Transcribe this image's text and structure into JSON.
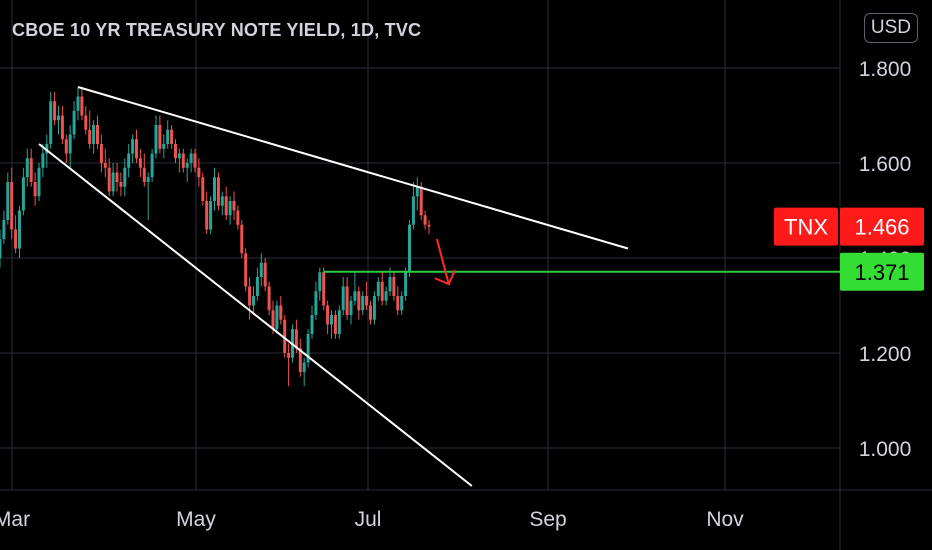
{
  "header": {
    "title": "CBOE 10 YR TREASURY NOTE YIELD, 1D, TVC"
  },
  "currency_button": "USD",
  "price_tags": {
    "symbol": "TNX",
    "last_price": "1.466",
    "support_price": "1.371"
  },
  "colors": {
    "up": "#26a69a",
    "down": "#ef5350",
    "background": "#000000",
    "grid": "#2a2e39",
    "trendline": "#ffffff",
    "support": "#2ecc40",
    "annotation_arrow": "#ff2b2b",
    "tag_red": "#ff1a1a",
    "tag_green": "#33dd33"
  },
  "chart_data": {
    "type": "candlestick",
    "title": "CBOE 10 YR TREASURY NOTE YIELD, 1D, TVC",
    "interval": "1D",
    "ylim": [
      0.92,
      1.87
    ],
    "y_ticks": [
      1.0,
      1.2,
      1.4,
      1.6,
      1.8
    ],
    "y_tick_labels": [
      "1.000",
      "1.200",
      "1.400",
      "1.600",
      "1.800"
    ],
    "x_ticks": [
      "Mar",
      "May",
      "Jul",
      "Sep",
      "Nov"
    ],
    "candles": [
      [
        1.4,
        1.46,
        1.38,
        1.44
      ],
      [
        1.44,
        1.5,
        1.43,
        1.48
      ],
      [
        1.48,
        1.58,
        1.47,
        1.56
      ],
      [
        1.56,
        1.59,
        1.44,
        1.46
      ],
      [
        1.46,
        1.49,
        1.41,
        1.42
      ],
      [
        1.42,
        1.51,
        1.4,
        1.5
      ],
      [
        1.5,
        1.59,
        1.49,
        1.57
      ],
      [
        1.57,
        1.63,
        1.55,
        1.61
      ],
      [
        1.61,
        1.63,
        1.55,
        1.56
      ],
      [
        1.56,
        1.58,
        1.51,
        1.53
      ],
      [
        1.53,
        1.6,
        1.52,
        1.59
      ],
      [
        1.59,
        1.64,
        1.57,
        1.62
      ],
      [
        1.62,
        1.66,
        1.59,
        1.64
      ],
      [
        1.64,
        1.75,
        1.63,
        1.73
      ],
      [
        1.73,
        1.75,
        1.68,
        1.69
      ],
      [
        1.69,
        1.72,
        1.66,
        1.7
      ],
      [
        1.7,
        1.72,
        1.64,
        1.65
      ],
      [
        1.65,
        1.66,
        1.6,
        1.62
      ],
      [
        1.62,
        1.68,
        1.59,
        1.66
      ],
      [
        1.66,
        1.73,
        1.65,
        1.71
      ],
      [
        1.71,
        1.76,
        1.69,
        1.74
      ],
      [
        1.74,
        1.76,
        1.69,
        1.7
      ],
      [
        1.7,
        1.72,
        1.66,
        1.67
      ],
      [
        1.67,
        1.71,
        1.63,
        1.64
      ],
      [
        1.64,
        1.69,
        1.62,
        1.68
      ],
      [
        1.68,
        1.7,
        1.63,
        1.64
      ],
      [
        1.64,
        1.66,
        1.58,
        1.6
      ],
      [
        1.6,
        1.63,
        1.57,
        1.59
      ],
      [
        1.59,
        1.61,
        1.53,
        1.54
      ],
      [
        1.54,
        1.6,
        1.53,
        1.58
      ],
      [
        1.58,
        1.6,
        1.54,
        1.56
      ],
      [
        1.56,
        1.58,
        1.53,
        1.55
      ],
      [
        1.55,
        1.61,
        1.53,
        1.59
      ],
      [
        1.59,
        1.64,
        1.57,
        1.62
      ],
      [
        1.62,
        1.66,
        1.6,
        1.65
      ],
      [
        1.65,
        1.67,
        1.6,
        1.61
      ],
      [
        1.61,
        1.63,
        1.57,
        1.59
      ],
      [
        1.59,
        1.62,
        1.55,
        1.56
      ],
      [
        1.56,
        1.58,
        1.48,
        1.57
      ],
      [
        1.57,
        1.63,
        1.56,
        1.62
      ],
      [
        1.62,
        1.7,
        1.61,
        1.68
      ],
      [
        1.68,
        1.7,
        1.62,
        1.63
      ],
      [
        1.63,
        1.66,
        1.61,
        1.64
      ],
      [
        1.64,
        1.69,
        1.63,
        1.67
      ],
      [
        1.67,
        1.68,
        1.63,
        1.64
      ],
      [
        1.64,
        1.65,
        1.6,
        1.61
      ],
      [
        1.61,
        1.63,
        1.58,
        1.62
      ],
      [
        1.62,
        1.63,
        1.58,
        1.59
      ],
      [
        1.59,
        1.61,
        1.56,
        1.6
      ],
      [
        1.6,
        1.63,
        1.58,
        1.62
      ],
      [
        1.62,
        1.63,
        1.58,
        1.59
      ],
      [
        1.59,
        1.61,
        1.55,
        1.57
      ],
      [
        1.57,
        1.58,
        1.51,
        1.52
      ],
      [
        1.52,
        1.54,
        1.45,
        1.46
      ],
      [
        1.46,
        1.53,
        1.45,
        1.52
      ],
      [
        1.52,
        1.59,
        1.5,
        1.57
      ],
      [
        1.57,
        1.58,
        1.5,
        1.51
      ],
      [
        1.51,
        1.54,
        1.49,
        1.53
      ],
      [
        1.53,
        1.55,
        1.48,
        1.49
      ],
      [
        1.49,
        1.53,
        1.47,
        1.52
      ],
      [
        1.52,
        1.54,
        1.48,
        1.5
      ],
      [
        1.5,
        1.51,
        1.46,
        1.47
      ],
      [
        1.47,
        1.48,
        1.4,
        1.41
      ],
      [
        1.41,
        1.42,
        1.33,
        1.34
      ],
      [
        1.34,
        1.36,
        1.27,
        1.3
      ],
      [
        1.3,
        1.34,
        1.28,
        1.32
      ],
      [
        1.32,
        1.38,
        1.31,
        1.36
      ],
      [
        1.36,
        1.41,
        1.34,
        1.39
      ],
      [
        1.39,
        1.4,
        1.33,
        1.34
      ],
      [
        1.34,
        1.35,
        1.28,
        1.29
      ],
      [
        1.29,
        1.31,
        1.24,
        1.25
      ],
      [
        1.25,
        1.31,
        1.24,
        1.3
      ],
      [
        1.3,
        1.32,
        1.26,
        1.27
      ],
      [
        1.27,
        1.28,
        1.19,
        1.2
      ],
      [
        1.2,
        1.22,
        1.13,
        1.19
      ],
      [
        1.19,
        1.26,
        1.18,
        1.25
      ],
      [
        1.25,
        1.27,
        1.2,
        1.21
      ],
      [
        1.21,
        1.23,
        1.15,
        1.16
      ],
      [
        1.16,
        1.19,
        1.13,
        1.18
      ],
      [
        1.18,
        1.25,
        1.17,
        1.24
      ],
      [
        1.24,
        1.3,
        1.23,
        1.28
      ],
      [
        1.28,
        1.35,
        1.27,
        1.33
      ],
      [
        1.33,
        1.38,
        1.31,
        1.37
      ],
      [
        1.37,
        1.38,
        1.29,
        1.3
      ],
      [
        1.3,
        1.31,
        1.24,
        1.26
      ],
      [
        1.26,
        1.29,
        1.23,
        1.28
      ],
      [
        1.28,
        1.29,
        1.23,
        1.24
      ],
      [
        1.24,
        1.3,
        1.23,
        1.29
      ],
      [
        1.29,
        1.36,
        1.28,
        1.34
      ],
      [
        1.34,
        1.36,
        1.27,
        1.28
      ],
      [
        1.28,
        1.32,
        1.26,
        1.31
      ],
      [
        1.31,
        1.37,
        1.3,
        1.33
      ],
      [
        1.33,
        1.34,
        1.27,
        1.29
      ],
      [
        1.29,
        1.33,
        1.28,
        1.32
      ],
      [
        1.32,
        1.35,
        1.29,
        1.3
      ],
      [
        1.3,
        1.31,
        1.26,
        1.27
      ],
      [
        1.27,
        1.33,
        1.26,
        1.32
      ],
      [
        1.32,
        1.36,
        1.31,
        1.35
      ],
      [
        1.35,
        1.37,
        1.3,
        1.31
      ],
      [
        1.31,
        1.34,
        1.3,
        1.33
      ],
      [
        1.33,
        1.38,
        1.32,
        1.36
      ],
      [
        1.36,
        1.37,
        1.31,
        1.32
      ],
      [
        1.32,
        1.34,
        1.28,
        1.29
      ],
      [
        1.29,
        1.33,
        1.28,
        1.32
      ],
      [
        1.32,
        1.38,
        1.31,
        1.37
      ],
      [
        1.37,
        1.48,
        1.36,
        1.47
      ],
      [
        1.47,
        1.56,
        1.46,
        1.53
      ],
      [
        1.53,
        1.57,
        1.5,
        1.55
      ],
      [
        1.55,
        1.56,
        1.48,
        1.49
      ],
      [
        1.49,
        1.5,
        1.46,
        1.47
      ],
      [
        1.47,
        1.48,
        1.45,
        1.466
      ]
    ],
    "trendlines": [
      {
        "name": "upper resistance",
        "from_bar": 20,
        "from_value": 1.76,
        "to_bar": 161,
        "to_value": 1.42
      },
      {
        "name": "lower support",
        "from_bar": 10,
        "from_value": 1.64,
        "to_bar": 121,
        "to_value": 0.92
      }
    ],
    "support_level": 1.371,
    "last_price": 1.466
  }
}
